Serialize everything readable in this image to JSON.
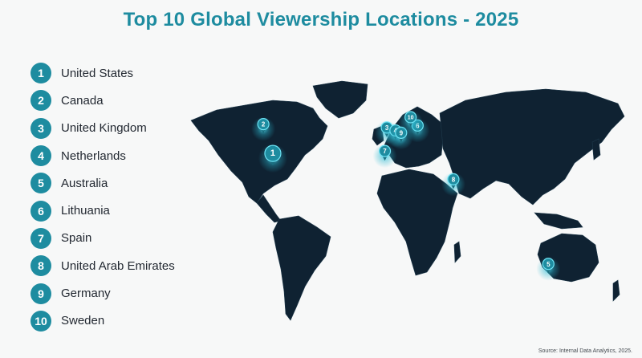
{
  "title": "Top 10 Global Viewership Locations - 2025",
  "source": "Source: Internal Data Analytics, 2025.",
  "colors": {
    "accent": "#1e8ca0",
    "land": "#0f2232",
    "glow": "#4fd7ec"
  },
  "locations": [
    {
      "rank": "1",
      "name": "United States"
    },
    {
      "rank": "2",
      "name": "Canada"
    },
    {
      "rank": "3",
      "name": "United Kingdom"
    },
    {
      "rank": "4",
      "name": "Netherlands"
    },
    {
      "rank": "5",
      "name": "Australia"
    },
    {
      "rank": "6",
      "name": "Lithuania"
    },
    {
      "rank": "7",
      "name": "Spain"
    },
    {
      "rank": "8",
      "name": "United Arab Emirates"
    },
    {
      "rank": "9",
      "name": "Germany"
    },
    {
      "rank": "10",
      "name": "Sweden"
    }
  ],
  "map_pins": [
    {
      "rank": "1",
      "lat": 39,
      "lon": -98
    },
    {
      "rank": "2",
      "lat": 56,
      "lon": -106
    },
    {
      "rank": "3",
      "lat": 54,
      "lon": -2
    },
    {
      "rank": "4",
      "lat": 52.3,
      "lon": 5.3
    },
    {
      "rank": "5",
      "lat": -25,
      "lon": 134
    },
    {
      "rank": "6",
      "lat": 55.2,
      "lon": 23.9
    },
    {
      "rank": "7",
      "lat": 40.4,
      "lon": -3.7
    },
    {
      "rank": "8",
      "lat": 24,
      "lon": 54
    },
    {
      "rank": "9",
      "lat": 51,
      "lon": 10
    },
    {
      "rank": "10",
      "lat": 60,
      "lon": 18
    }
  ]
}
